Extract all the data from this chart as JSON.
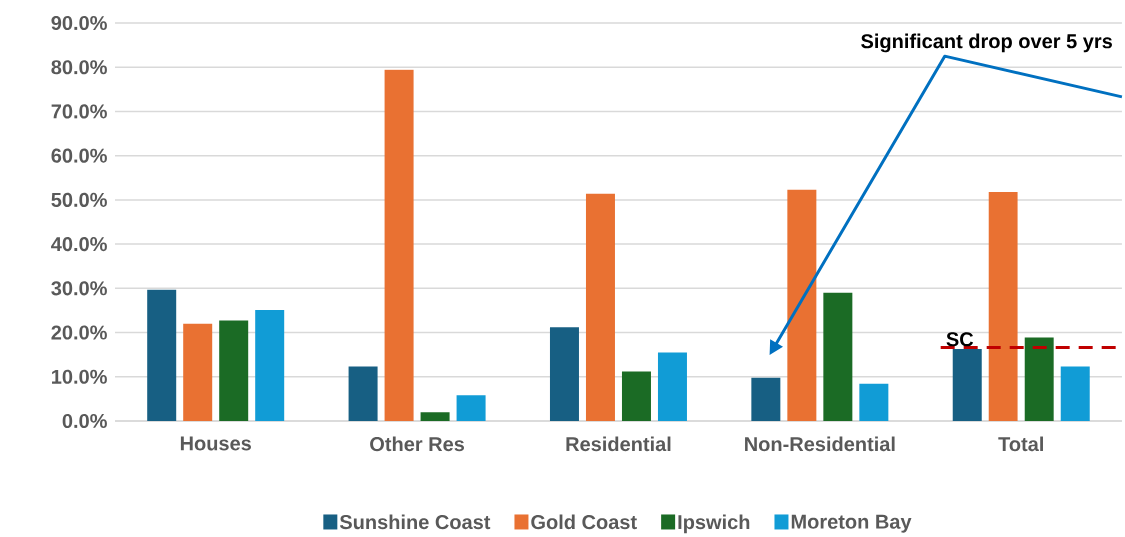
{
  "chart_data": {
    "type": "bar",
    "categories": [
      "Houses",
      "Other Res",
      "Residential",
      "Non-Residential",
      "Total"
    ],
    "series": [
      {
        "name": "Sunshine Coast",
        "color": "#175f83",
        "values": [
          29.7,
          12.3,
          21.2,
          9.8,
          16.3
        ]
      },
      {
        "name": "Gold Coast",
        "color": "#e97132",
        "values": [
          22.0,
          79.4,
          51.4,
          52.3,
          51.8
        ]
      },
      {
        "name": "Ipswich",
        "color": "#1b6b25",
        "values": [
          22.7,
          2.0,
          11.2,
          29.0,
          18.9
        ]
      },
      {
        "name": "Moreton Bay",
        "color": "#119cd6",
        "values": [
          25.1,
          5.8,
          15.5,
          8.4,
          12.3
        ]
      }
    ],
    "ylim": [
      0,
      90
    ],
    "yticks": [
      {
        "value": 0,
        "label": "0.0%"
      },
      {
        "value": 10,
        "label": "10.0%"
      },
      {
        "value": 20,
        "label": "20.0%"
      },
      {
        "value": 30,
        "label": "30.0%"
      },
      {
        "value": 40,
        "label": "40.0%"
      },
      {
        "value": 50,
        "label": "50.0%"
      },
      {
        "value": 60,
        "label": "60.0%"
      },
      {
        "value": 70,
        "label": "70.0%"
      },
      {
        "value": 80,
        "label": "80.0%"
      },
      {
        "value": 90,
        "label": "90.0%"
      }
    ],
    "grid": "y",
    "legend": "bottom",
    "ref_lines": [
      {
        "axis": "y",
        "value": 16.6,
        "label": "SC",
        "color": "#c00000",
        "line_style": "dashed"
      }
    ],
    "annotations": [
      "Significant drop over 5 yrs"
    ]
  }
}
